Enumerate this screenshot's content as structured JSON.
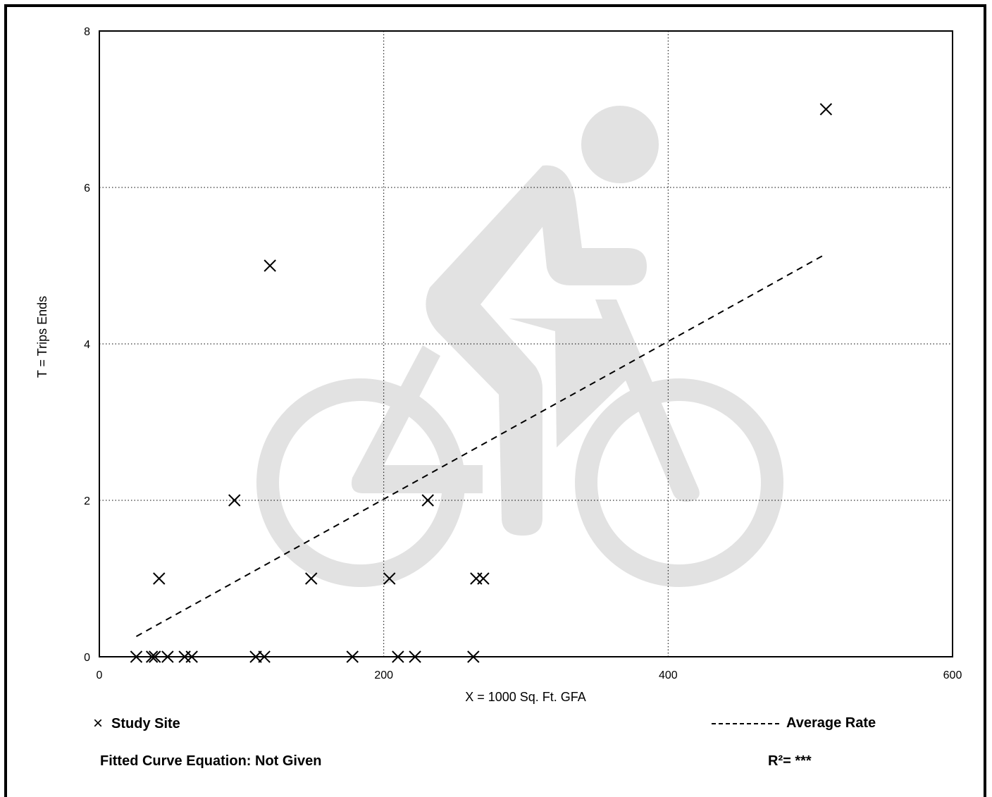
{
  "chart_data": {
    "type": "scatter",
    "xlabel": "X = 1000 Sq. Ft. GFA",
    "ylabel": "T = Trips Ends",
    "xlim": [
      0,
      600
    ],
    "ylim": [
      0,
      8
    ],
    "xticks": [
      "0",
      "200",
      "400",
      "600"
    ],
    "yticks": [
      "0",
      "2",
      "4",
      "6",
      "8"
    ],
    "grid": true,
    "series": [
      {
        "name": "Study Site",
        "marker": "x",
        "points": [
          [
            26,
            0
          ],
          [
            37,
            0
          ],
          [
            39,
            0
          ],
          [
            48,
            0
          ],
          [
            60,
            0
          ],
          [
            65,
            0
          ],
          [
            110,
            0
          ],
          [
            116,
            0
          ],
          [
            178,
            0
          ],
          [
            210,
            0
          ],
          [
            222,
            0
          ],
          [
            263,
            0
          ],
          [
            42,
            1
          ],
          [
            149,
            1
          ],
          [
            204,
            1
          ],
          [
            265,
            1
          ],
          [
            270,
            1
          ],
          [
            95,
            2
          ],
          [
            231,
            2
          ],
          [
            120,
            5
          ],
          [
            511,
            7
          ]
        ]
      },
      {
        "name": "Average Rate",
        "style": "dashed",
        "line": [
          [
            26,
            0.26
          ],
          [
            511,
            5.15
          ]
        ]
      }
    ]
  },
  "legend": {
    "study_site": "Study Site",
    "study_site_mark": "×",
    "average_rate": "Average Rate"
  },
  "footer": {
    "fitted_curve": "Fitted Curve Equation: Not Given",
    "r_squared": "R²= ***"
  },
  "watermark": "bicycle-rider-icon"
}
